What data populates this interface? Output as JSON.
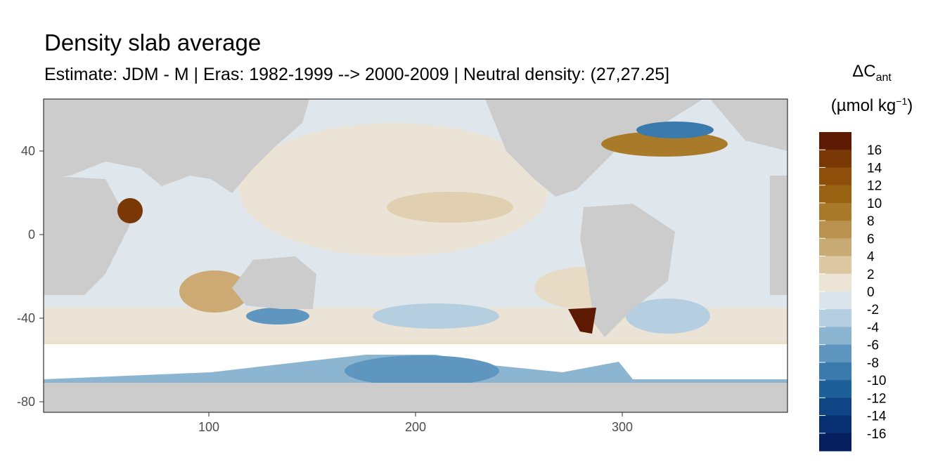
{
  "title": "Density slab average",
  "subtitle": "Estimate: JDM - M | Eras: 1982-1999 --> 2000-2009 | Neutral density: (27,27.25]",
  "map": {
    "x_ticks": [
      "100",
      "200",
      "300"
    ],
    "y_ticks": [
      "40",
      "0",
      "-40",
      "-80"
    ],
    "x_range": [
      20,
      380
    ],
    "y_range": [
      -85,
      65
    ],
    "land_color": "#cccccc",
    "panel_border": "#333333"
  },
  "legend": {
    "title_line1": "ΔC",
    "title_sub": "ant",
    "title_line2_pre": "(µmol kg",
    "title_sup": "−1",
    "title_line2_post": ")",
    "labels": [
      "16",
      "14",
      "12",
      "10",
      "8",
      "6",
      "4",
      "2",
      "0",
      "-2",
      "-4",
      "-6",
      "-8",
      "-10",
      "-12",
      "-14",
      "-16"
    ],
    "colors": [
      "#5c1a03",
      "#7a3806",
      "#8f4f0a",
      "#9a6314",
      "#a97a29",
      "#b8924e",
      "#c8aa75",
      "#dcc8a2",
      "#ece4d5",
      "#d9e4ec",
      "#b5cfe0",
      "#8cb5d2",
      "#5f96bf",
      "#3b7aac",
      "#1d5f98",
      "#0f4585",
      "#082f72",
      "#061f5e"
    ],
    "colors_note_unused": ""
  }
}
